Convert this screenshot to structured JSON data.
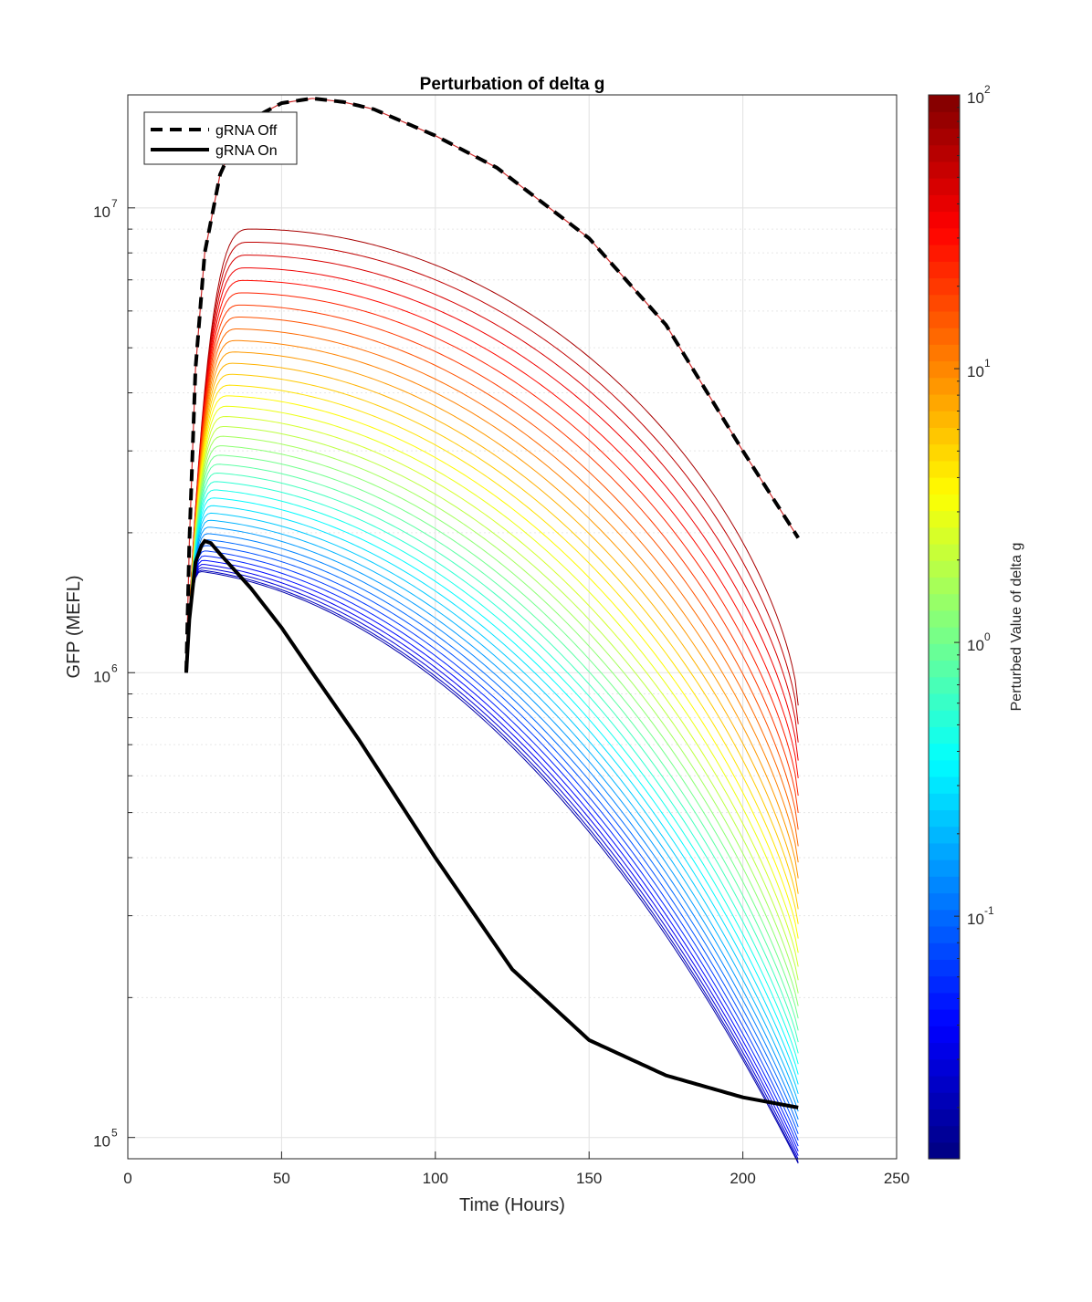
{
  "chart_data": {
    "type": "line",
    "title": "Perturbation of delta g",
    "xlabel": "Time (Hours)",
    "ylabel": "GFP (MEFL)",
    "xlim": [
      0,
      250
    ],
    "ylim": [
      90000,
      17500000
    ],
    "yscale": "log",
    "grid": true,
    "x_ticks": [
      0,
      50,
      100,
      150,
      200,
      250
    ],
    "y_ticks": [
      {
        "value": 100000,
        "base": "10",
        "exp": "5"
      },
      {
        "value": 1000000,
        "base": "10",
        "exp": "6"
      },
      {
        "value": 10000000,
        "base": "10",
        "exp": "7"
      }
    ],
    "legend": {
      "position": "top-left",
      "entries": [
        {
          "label": "gRNA Off",
          "style": "dashed",
          "color": "#000000"
        },
        {
          "label": "gRNA On",
          "style": "solid",
          "color": "#000000"
        }
      ]
    },
    "colorbar": {
      "label": "Perturbed Value of delta g",
      "scale": "log",
      "range": [
        0.013,
        100
      ],
      "colormap": "jet",
      "levels": 64,
      "ticks": [
        {
          "value": 0.1,
          "base": "10",
          "exp": "-1"
        },
        {
          "value": 1,
          "base": "10",
          "exp": "0"
        },
        {
          "value": 10,
          "base": "10",
          "exp": "1"
        },
        {
          "value": 100,
          "base": "10",
          "exp": "2"
        }
      ]
    },
    "series": [
      {
        "name": "gRNA Off",
        "style": "dashed",
        "color": "#000000",
        "x": [
          19,
          20,
          22,
          25,
          30,
          35,
          40,
          50,
          60,
          70,
          80,
          100,
          120,
          150,
          175,
          200,
          218
        ],
        "y": [
          1000000,
          1900000,
          4500000,
          8000000,
          11800000,
          14000000,
          15500000,
          16800000,
          17200000,
          16900000,
          16300000,
          14300000,
          12200000,
          8600000,
          5600000,
          3000000,
          1950000
        ]
      },
      {
        "name": "gRNA On",
        "style": "solid",
        "color": "#000000",
        "x": [
          19,
          20,
          22,
          24,
          25,
          27,
          30,
          40,
          50,
          60,
          75,
          100,
          125,
          150,
          175,
          200,
          218
        ],
        "y": [
          1000000,
          1300000,
          1730000,
          1880000,
          1920000,
          1900000,
          1800000,
          1520000,
          1250000,
          1000000,
          720000,
          400000,
          230000,
          162000,
          136000,
          122000,
          116000
        ]
      }
    ],
    "perturbed_curves": {
      "count": 40,
      "color_by": "delta g",
      "delta_g_range": [
        0.013,
        100
      ],
      "x_start": 19,
      "x_end": 218,
      "y_start": 1000000,
      "peak_time_range": [
        24,
        40
      ],
      "peak_value_range": [
        1650000,
        9000000
      ],
      "end_value_range": [
        88000,
        850000
      ]
    }
  }
}
